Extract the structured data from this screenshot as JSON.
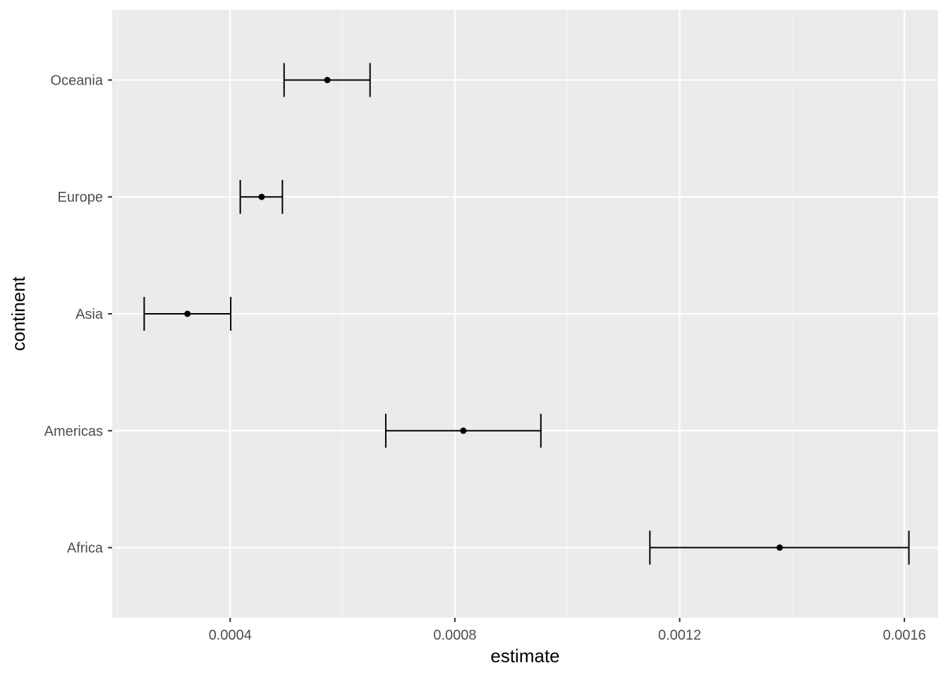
{
  "chart_data": {
    "type": "scatter",
    "xlabel": "estimate",
    "ylabel": "continent",
    "xlim": [
      0.00019,
      0.00166
    ],
    "x_ticks": [
      0.0004,
      0.0008,
      0.0012,
      0.0016
    ],
    "x_tick_labels": [
      "0.0004",
      "0.0008",
      "0.0012",
      "0.0016"
    ],
    "x_minor_ticks": [
      0.0002,
      0.0006,
      0.001,
      0.0014
    ],
    "categories": [
      "Africa",
      "Americas",
      "Asia",
      "Europe",
      "Oceania"
    ],
    "points": [
      {
        "category": "Africa",
        "estimate": 0.001378,
        "low": 0.001147,
        "high": 0.001608
      },
      {
        "category": "Americas",
        "estimate": 0.000815,
        "low": 0.000677,
        "high": 0.000953
      },
      {
        "category": "Asia",
        "estimate": 0.000324,
        "low": 0.000247,
        "high": 0.000401
      },
      {
        "category": "Europe",
        "estimate": 0.000456,
        "low": 0.000418,
        "high": 0.000493
      },
      {
        "category": "Oceania",
        "estimate": 0.000573,
        "low": 0.000496,
        "high": 0.000649
      }
    ],
    "grid": true
  },
  "colors": {
    "panel_background": "#ebebeb",
    "grid_major": "#ffffff",
    "grid_minor": "#f5f5f5",
    "marks": "#000000",
    "tick_text": "#4d4d4d",
    "axis_ticks": "#333333"
  }
}
